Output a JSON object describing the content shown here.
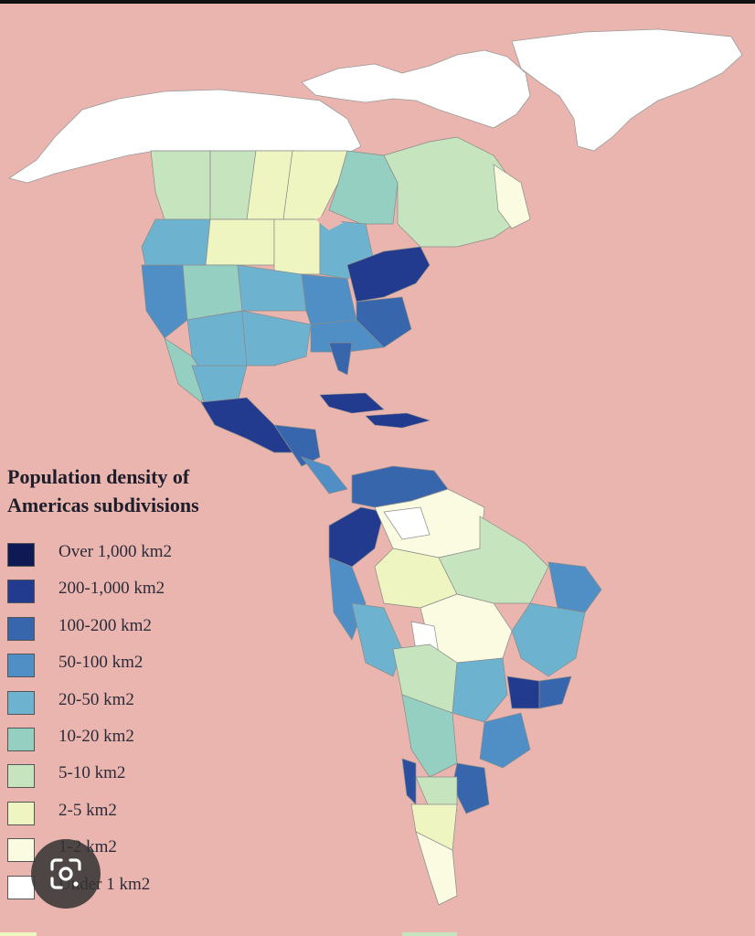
{
  "map": {
    "legend": {
      "title_line1": "Population density of",
      "title_line2": "Americas subdivisions",
      "items": [
        {
          "label": "Over 1,000 km2",
          "color": "#0f1a55"
        },
        {
          "label": "200-1,000 km2",
          "color": "#233b8f"
        },
        {
          "label": "100-200 km2",
          "color": "#3766ad"
        },
        {
          "label": "50-100 km2",
          "color": "#4f8fc5"
        },
        {
          "label": "20-50 km2",
          "color": "#6db3cf"
        },
        {
          "label": "10-20 km2",
          "color": "#94cfc2"
        },
        {
          "label": "5-10 km2",
          "color": "#c6e4bd"
        },
        {
          "label": "2-5 km2",
          "color": "#eef5c0"
        },
        {
          "label": "1-2 km2",
          "color": "#fbfbe2"
        },
        {
          "label": "Under 1 km2",
          "color": "#ffffff"
        }
      ]
    },
    "colors": {
      "ocean": "#e9b5ae",
      "arctic": "#ffffff",
      "border": "#8a8a8a"
    }
  },
  "overlay": {
    "lens_icon": "google-lens-icon"
  }
}
